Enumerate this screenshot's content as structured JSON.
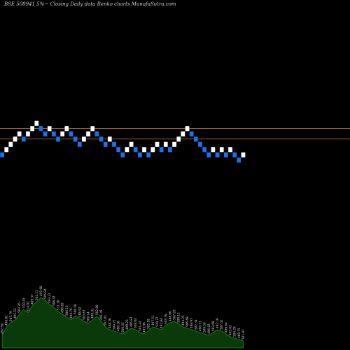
{
  "title": "BSE 508941 5%~  Closing Daily data  Renko  charts MunafaSutra.com",
  "colors": {
    "background": "#000000",
    "brick_up": "#ffffff",
    "brick_down": "#1e6fe8",
    "reference_line": "#d98a1c",
    "volume_fill": "#0a3a0a",
    "volume_stroke": "#1f8a1f"
  },
  "chart_data": {
    "type": "renko",
    "reference_levels": [
      1,
      3
    ],
    "bricks": [
      {
        "level": -1,
        "dir": "down"
      },
      {
        "level": 0,
        "dir": "up"
      },
      {
        "level": 1,
        "dir": "up"
      },
      {
        "level": 2,
        "dir": "up"
      },
      {
        "level": 3,
        "dir": "up"
      },
      {
        "level": 2,
        "dir": "down"
      },
      {
        "level": 3,
        "dir": "up"
      },
      {
        "level": 4,
        "dir": "up"
      },
      {
        "level": 5,
        "dir": "up"
      },
      {
        "level": 4,
        "dir": "down"
      },
      {
        "level": 3,
        "dir": "down"
      },
      {
        "level": 4,
        "dir": "up"
      },
      {
        "level": 3,
        "dir": "down"
      },
      {
        "level": 2,
        "dir": "down"
      },
      {
        "level": 3,
        "dir": "up"
      },
      {
        "level": 4,
        "dir": "up"
      },
      {
        "level": 3,
        "dir": "down"
      },
      {
        "level": 2,
        "dir": "down"
      },
      {
        "level": 1,
        "dir": "down"
      },
      {
        "level": 2,
        "dir": "up"
      },
      {
        "level": 3,
        "dir": "up"
      },
      {
        "level": 4,
        "dir": "up"
      },
      {
        "level": 3,
        "dir": "down"
      },
      {
        "level": 2,
        "dir": "down"
      },
      {
        "level": 1,
        "dir": "down"
      },
      {
        "level": 2,
        "dir": "up"
      },
      {
        "level": 1,
        "dir": "down"
      },
      {
        "level": 0,
        "dir": "down"
      },
      {
        "level": -1,
        "dir": "down"
      },
      {
        "level": 0,
        "dir": "up"
      },
      {
        "level": 1,
        "dir": "up"
      },
      {
        "level": 0,
        "dir": "down"
      },
      {
        "level": -1,
        "dir": "down"
      },
      {
        "level": 0,
        "dir": "up"
      },
      {
        "level": -1,
        "dir": "down"
      },
      {
        "level": 0,
        "dir": "up"
      },
      {
        "level": 1,
        "dir": "up"
      },
      {
        "level": 0,
        "dir": "down"
      },
      {
        "level": 1,
        "dir": "up"
      },
      {
        "level": 0,
        "dir": "down"
      },
      {
        "level": 1,
        "dir": "up"
      },
      {
        "level": 2,
        "dir": "up"
      },
      {
        "level": 3,
        "dir": "up"
      },
      {
        "level": 4,
        "dir": "up"
      },
      {
        "level": 3,
        "dir": "down"
      },
      {
        "level": 2,
        "dir": "down"
      },
      {
        "level": 1,
        "dir": "down"
      },
      {
        "level": 0,
        "dir": "down"
      },
      {
        "level": -1,
        "dir": "down"
      },
      {
        "level": 0,
        "dir": "up"
      },
      {
        "level": -1,
        "dir": "down"
      },
      {
        "level": 0,
        "dir": "up"
      },
      {
        "level": -1,
        "dir": "down"
      },
      {
        "level": 0,
        "dir": "up"
      },
      {
        "level": -1,
        "dir": "down"
      },
      {
        "level": -2,
        "dir": "down"
      },
      {
        "level": -1,
        "dir": "up"
      }
    ],
    "volume": [
      18,
      30,
      36,
      40,
      48,
      55,
      50,
      60,
      66,
      72,
      68,
      62,
      58,
      52,
      48,
      44,
      40,
      46,
      42,
      38,
      35,
      40,
      45,
      38,
      30,
      26,
      24,
      22,
      20,
      24,
      28,
      26,
      22,
      20,
      25,
      30,
      28,
      26,
      32,
      36,
      38,
      34,
      30,
      28,
      26,
      24,
      22,
      20,
      18,
      22,
      26,
      24,
      20,
      16,
      14,
      12,
      10
    ],
    "volume_labels": [
      "492.59",
      "498.81",
      "507.79",
      "495.53",
      "503.26",
      "510.45",
      "514.02",
      "489.37",
      "502.11",
      "497.68",
      "505.94",
      "493.22",
      "508.47",
      "511.30",
      "499.85",
      "506.13",
      "494.76",
      "500.58",
      "488.92",
      "503.67",
      "509.14",
      "496.31",
      "502.89",
      "491.45",
      "507.02",
      "498.36",
      "504.71",
      "490.18",
      "506.55",
      "499.23",
      "495.87",
      "508.04",
      "501.42",
      "493.96",
      "505.18",
      "497.51",
      "510.77",
      "492.84",
      "503.39",
      "488.60",
      "507.93",
      "500.12",
      "494.25",
      "506.68",
      "498.97",
      "502.34",
      "490.71",
      "509.56",
      "496.83",
      "503.08",
      "492.16",
      "507.41",
      "499.64",
      "495.02",
      "504.29",
      "489.75",
      "501.87"
    ]
  }
}
